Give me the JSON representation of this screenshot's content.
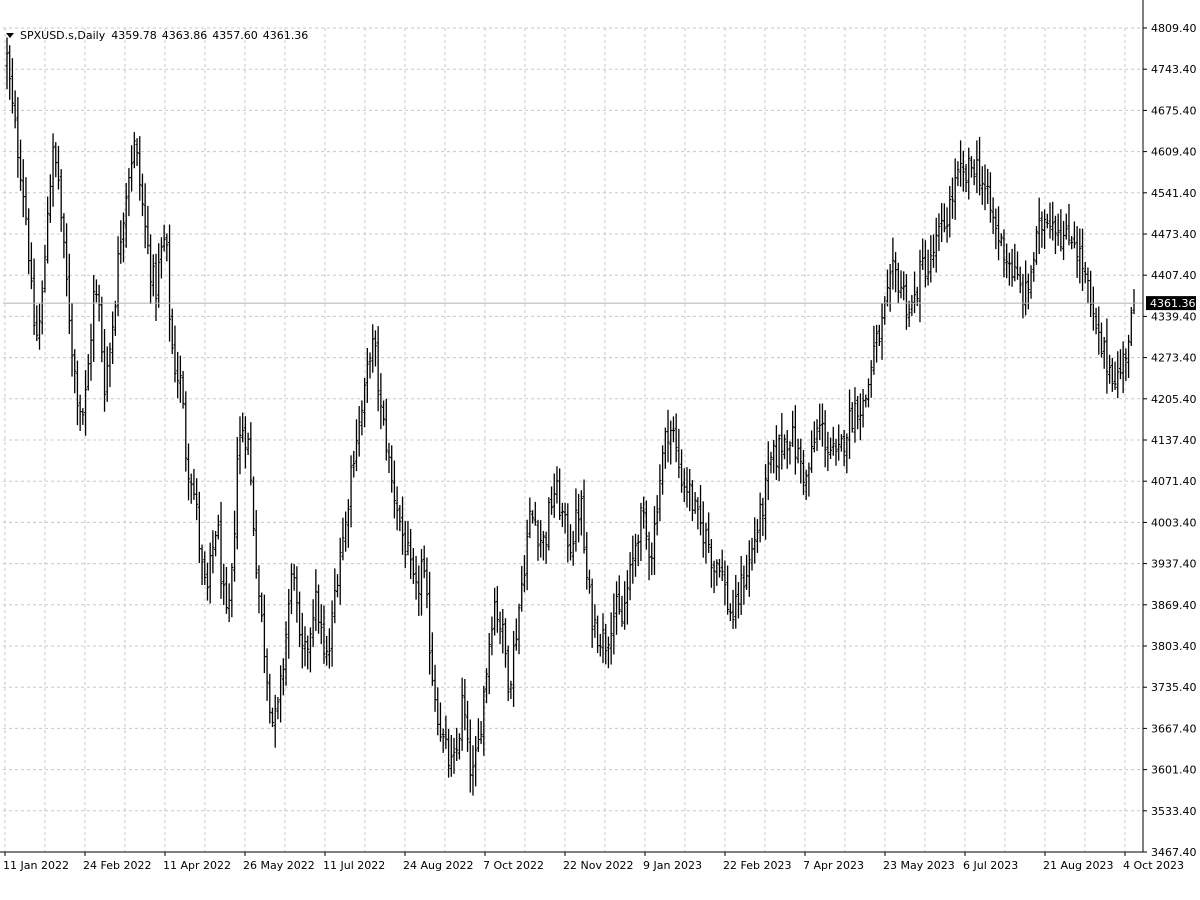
{
  "header": {
    "symbol": "SPXUSD.s,Daily",
    "open": "4359.78",
    "high": "4363.86",
    "low": "4357.60",
    "close": "4361.36"
  },
  "colors": {
    "bars": "#000000",
    "grid": "#c8c8c8",
    "axis": "#000000",
    "last_price_line": "#b0b0b0",
    "last_price_box": "#000000",
    "last_price_text": "#ffffff",
    "background": "#ffffff"
  },
  "chart_data": {
    "type": "ohlc-bar",
    "title": "",
    "xlabel": "",
    "ylabel": "",
    "grid": true,
    "y_axis_side": "right",
    "ylim": [
      3467.4,
      4809.4
    ],
    "y_ticks": [
      "4809.40",
      "4743.40",
      "4675.40",
      "4609.40",
      "4541.40",
      "4473.40",
      "4407.40",
      "4339.40",
      "4273.40",
      "4205.40",
      "4137.40",
      "4071.40",
      "4003.40",
      "3937.40",
      "3869.40",
      "3803.40",
      "3735.40",
      "3667.40",
      "3601.40",
      "3533.40",
      "3467.40"
    ],
    "x_ticks": [
      "11 Jan 2022",
      "24 Feb 2022",
      "11 Apr 2022",
      "26 May 2022",
      "11 Jul 2022",
      "24 Aug 2022",
      "7 Oct 2022",
      "22 Nov 2022",
      "9 Jan 2023",
      "22 Feb 2023",
      "7 Apr 2023",
      "23 May 2023",
      "6 Jul 2023",
      "21 Aug 2023",
      "4 Oct 2023"
    ],
    "last_price": 4361.36,
    "last_price_label": "4361.36",
    "close_path": [
      4760,
      4680,
      4620,
      4560,
      4480,
      4340,
      4300,
      4380,
      4530,
      4600,
      4570,
      4450,
      4360,
      4260,
      4200,
      4180,
      4270,
      4380,
      4350,
      4230,
      4280,
      4360,
      4460,
      4530,
      4590,
      4620,
      4550,
      4480,
      4420,
      4380,
      4440,
      4470,
      4300,
      4250,
      4230,
      4110,
      4080,
      4020,
      3930,
      3880,
      3950,
      4010,
      3900,
      3830,
      3920,
      4120,
      4160,
      4140,
      4020,
      3900,
      3820,
      3740,
      3670,
      3700,
      3780,
      3870,
      3940,
      3800,
      3780,
      3820,
      3880,
      3850,
      3770,
      3800,
      3890,
      3960,
      3990,
      4080,
      4140,
      4170,
      4220,
      4300,
      4270,
      4180,
      4140,
      4070,
      4040,
      3990,
      3960,
      3910,
      3880,
      3940,
      3860,
      3760,
      3700,
      3650,
      3620,
      3600,
      3640,
      3720,
      3620,
      3590,
      3640,
      3720,
      3800,
      3880,
      3850,
      3810,
      3740,
      3800,
      3870,
      3940,
      4010,
      4010,
      3980,
      3970,
      4030,
      4060,
      4030,
      3990,
      3970,
      4000,
      4040,
      3920,
      3860,
      3830,
      3820,
      3810,
      3850,
      3860,
      3840,
      3890,
      3930,
      3990,
      4010,
      3970,
      3960,
      4050,
      4110,
      4160,
      4150,
      4100,
      4070,
      4060,
      4030,
      4000,
      3990,
      3970,
      3930,
      3950,
      3900,
      3860,
      3850,
      3890,
      3920,
      3940,
      3980,
      4010,
      4050,
      4100,
      4110,
      4130,
      4140,
      4150,
      4120,
      4100,
      4070,
      4110,
      4150,
      4160,
      4130,
      4120,
      4100,
      4130,
      4160,
      4180,
      4200,
      4190,
      4220,
      4280,
      4300,
      4330,
      4370,
      4410,
      4400,
      4380,
      4350,
      4360,
      4400,
      4430,
      4410,
      4450,
      4470,
      4490,
      4520,
      4550,
      4570,
      4560,
      4580,
      4590,
      4570,
      4540,
      4510,
      4480,
      4460,
      4440,
      4420,
      4400,
      4380,
      4370,
      4420,
      4460,
      4490,
      4510,
      4500,
      4490,
      4470,
      4460,
      4480,
      4450,
      4420,
      4380,
      4330,
      4300,
      4280,
      4260,
      4250,
      4240,
      4270,
      4310,
      4361.36
    ]
  }
}
